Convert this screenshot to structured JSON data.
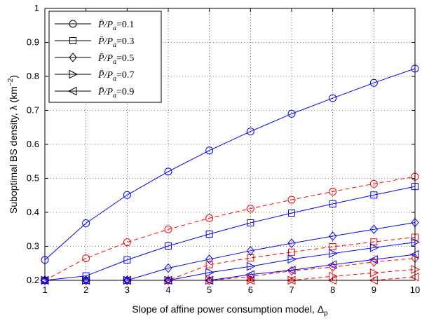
{
  "chart_data": {
    "type": "line",
    "xlabel": "Slope of affine power consumption model, Δ",
    "xlabel_sub": "p",
    "ylabel": "Suboptimal BS density, λ (km",
    "ylabel_sup": "−2",
    "ylabel_tail": ")",
    "xlim": [
      1,
      10
    ],
    "ylim": [
      0.2,
      1.0
    ],
    "x_ticks": [
      "1",
      "2",
      "3",
      "4",
      "5",
      "6",
      "7",
      "8",
      "9",
      "10"
    ],
    "y_ticks": [
      "0.2",
      "0.3",
      "0.4",
      "0.5",
      "0.6",
      "0.7",
      "0.8",
      "0.9",
      "1"
    ],
    "grid": "dotted",
    "legend_position": "top-left",
    "x": [
      1,
      2,
      3,
      4,
      5,
      6,
      7,
      8,
      9,
      10
    ],
    "series": [
      {
        "legend_base": "P̄/P",
        "legend_sub": "a",
        "legend_value": "=0.1",
        "marker": "circle",
        "color": "#0000ff",
        "style": "solid",
        "values": [
          0.26,
          0.368,
          0.451,
          0.52,
          0.582,
          0.638,
          0.69,
          0.736,
          0.781,
          0.823
        ]
      },
      {
        "marker": "circle",
        "color": "#ff0000",
        "style": "dashed",
        "values": [
          0.2,
          0.265,
          0.312,
          0.35,
          0.383,
          0.411,
          0.437,
          0.461,
          0.484,
          0.505
        ]
      },
      {
        "legend_base": "P̄/P",
        "legend_sub": "a",
        "legend_value": "=0.3",
        "marker": "square",
        "color": "#0000ff",
        "style": "solid",
        "values": [
          0.2,
          0.213,
          0.26,
          0.301,
          0.336,
          0.369,
          0.398,
          0.425,
          0.451,
          0.476
        ]
      },
      {
        "marker": "square",
        "color": "#ff0000",
        "style": "dashed",
        "values": [
          0.2,
          0.2,
          0.2,
          0.2,
          0.246,
          0.266,
          0.283,
          0.299,
          0.313,
          0.327
        ]
      },
      {
        "legend_base": "P̄/P",
        "legend_sub": "a",
        "legend_value": "=0.5",
        "marker": "diamond",
        "color": "#0000ff",
        "style": "solid",
        "values": [
          0.2,
          0.2,
          0.2,
          0.236,
          0.262,
          0.287,
          0.309,
          0.33,
          0.35,
          0.37
        ]
      },
      {
        "marker": "diamond",
        "color": "#ff0000",
        "style": "dashed",
        "values": [
          0.2,
          0.2,
          0.2,
          0.2,
          0.2,
          0.211,
          0.228,
          0.239,
          0.254,
          0.265
        ]
      },
      {
        "legend_base": "P̄/P",
        "legend_sub": "a",
        "legend_value": "=0.7",
        "marker": "triangle-right",
        "color": "#0000ff",
        "style": "solid",
        "values": [
          0.2,
          0.2,
          0.2,
          0.2,
          0.223,
          0.241,
          0.262,
          0.279,
          0.296,
          0.312
        ]
      },
      {
        "marker": "triangle-right",
        "color": "#ff0000",
        "style": "dashed",
        "values": [
          0.2,
          0.2,
          0.2,
          0.2,
          0.2,
          0.2,
          0.2,
          0.212,
          0.222,
          0.232
        ]
      },
      {
        "legend_base": "P̄/P",
        "legend_sub": "a",
        "legend_value": "=0.9",
        "marker": "triangle-left",
        "color": "#0000ff",
        "style": "solid",
        "values": [
          0.2,
          0.2,
          0.2,
          0.2,
          0.2,
          0.217,
          0.23,
          0.246,
          0.261,
          0.276
        ]
      },
      {
        "marker": "triangle-left",
        "color": "#ff0000",
        "style": "dashed",
        "values": [
          0.2,
          0.2,
          0.2,
          0.2,
          0.2,
          0.2,
          0.2,
          0.2,
          0.2,
          0.21
        ]
      }
    ]
  }
}
